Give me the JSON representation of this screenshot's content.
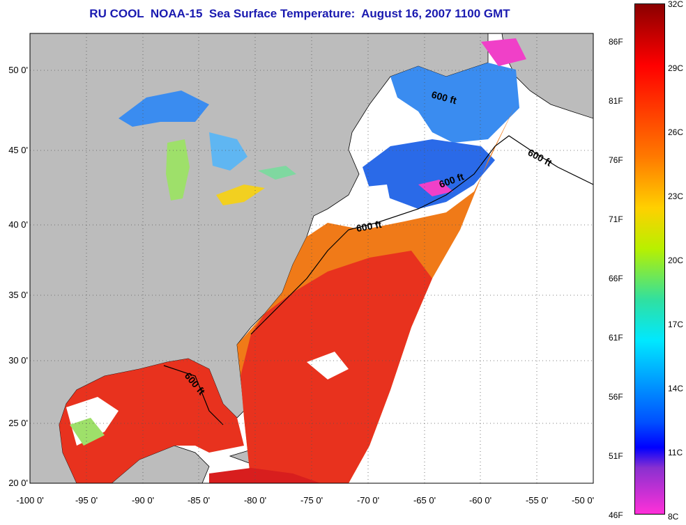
{
  "title": "RU COOL  NOAA-15  Sea Surface Temperature:  August 16, 2007 1100 GMT",
  "map": {
    "lon_labels": [
      "-100 0'",
      "-95 0'",
      "-90 0'",
      "-85 0'",
      "-80 0'",
      "-75 0'",
      "-70 0'",
      "-65 0'",
      "-60 0'",
      "-55 0'",
      "-50 0'"
    ],
    "lat_labels": [
      "50 0'",
      "45 0'",
      "40 0'",
      "35 0'",
      "30 0'",
      "25 0'",
      "20 0'"
    ],
    "contour_label": "600 ft",
    "colors": {
      "land": "#bcbcbc",
      "no_data": "#ffffff",
      "warm": "#e8321e",
      "cool": "#3a8cf0"
    }
  },
  "colorbar": {
    "fahrenheit": [
      "86F",
      "81F",
      "76F",
      "71F",
      "66F",
      "61F",
      "56F",
      "51F",
      "46F"
    ],
    "celsius": [
      "32C",
      "29C",
      "26C",
      "23C",
      "20C",
      "17C",
      "14C",
      "11C",
      "8C"
    ]
  }
}
